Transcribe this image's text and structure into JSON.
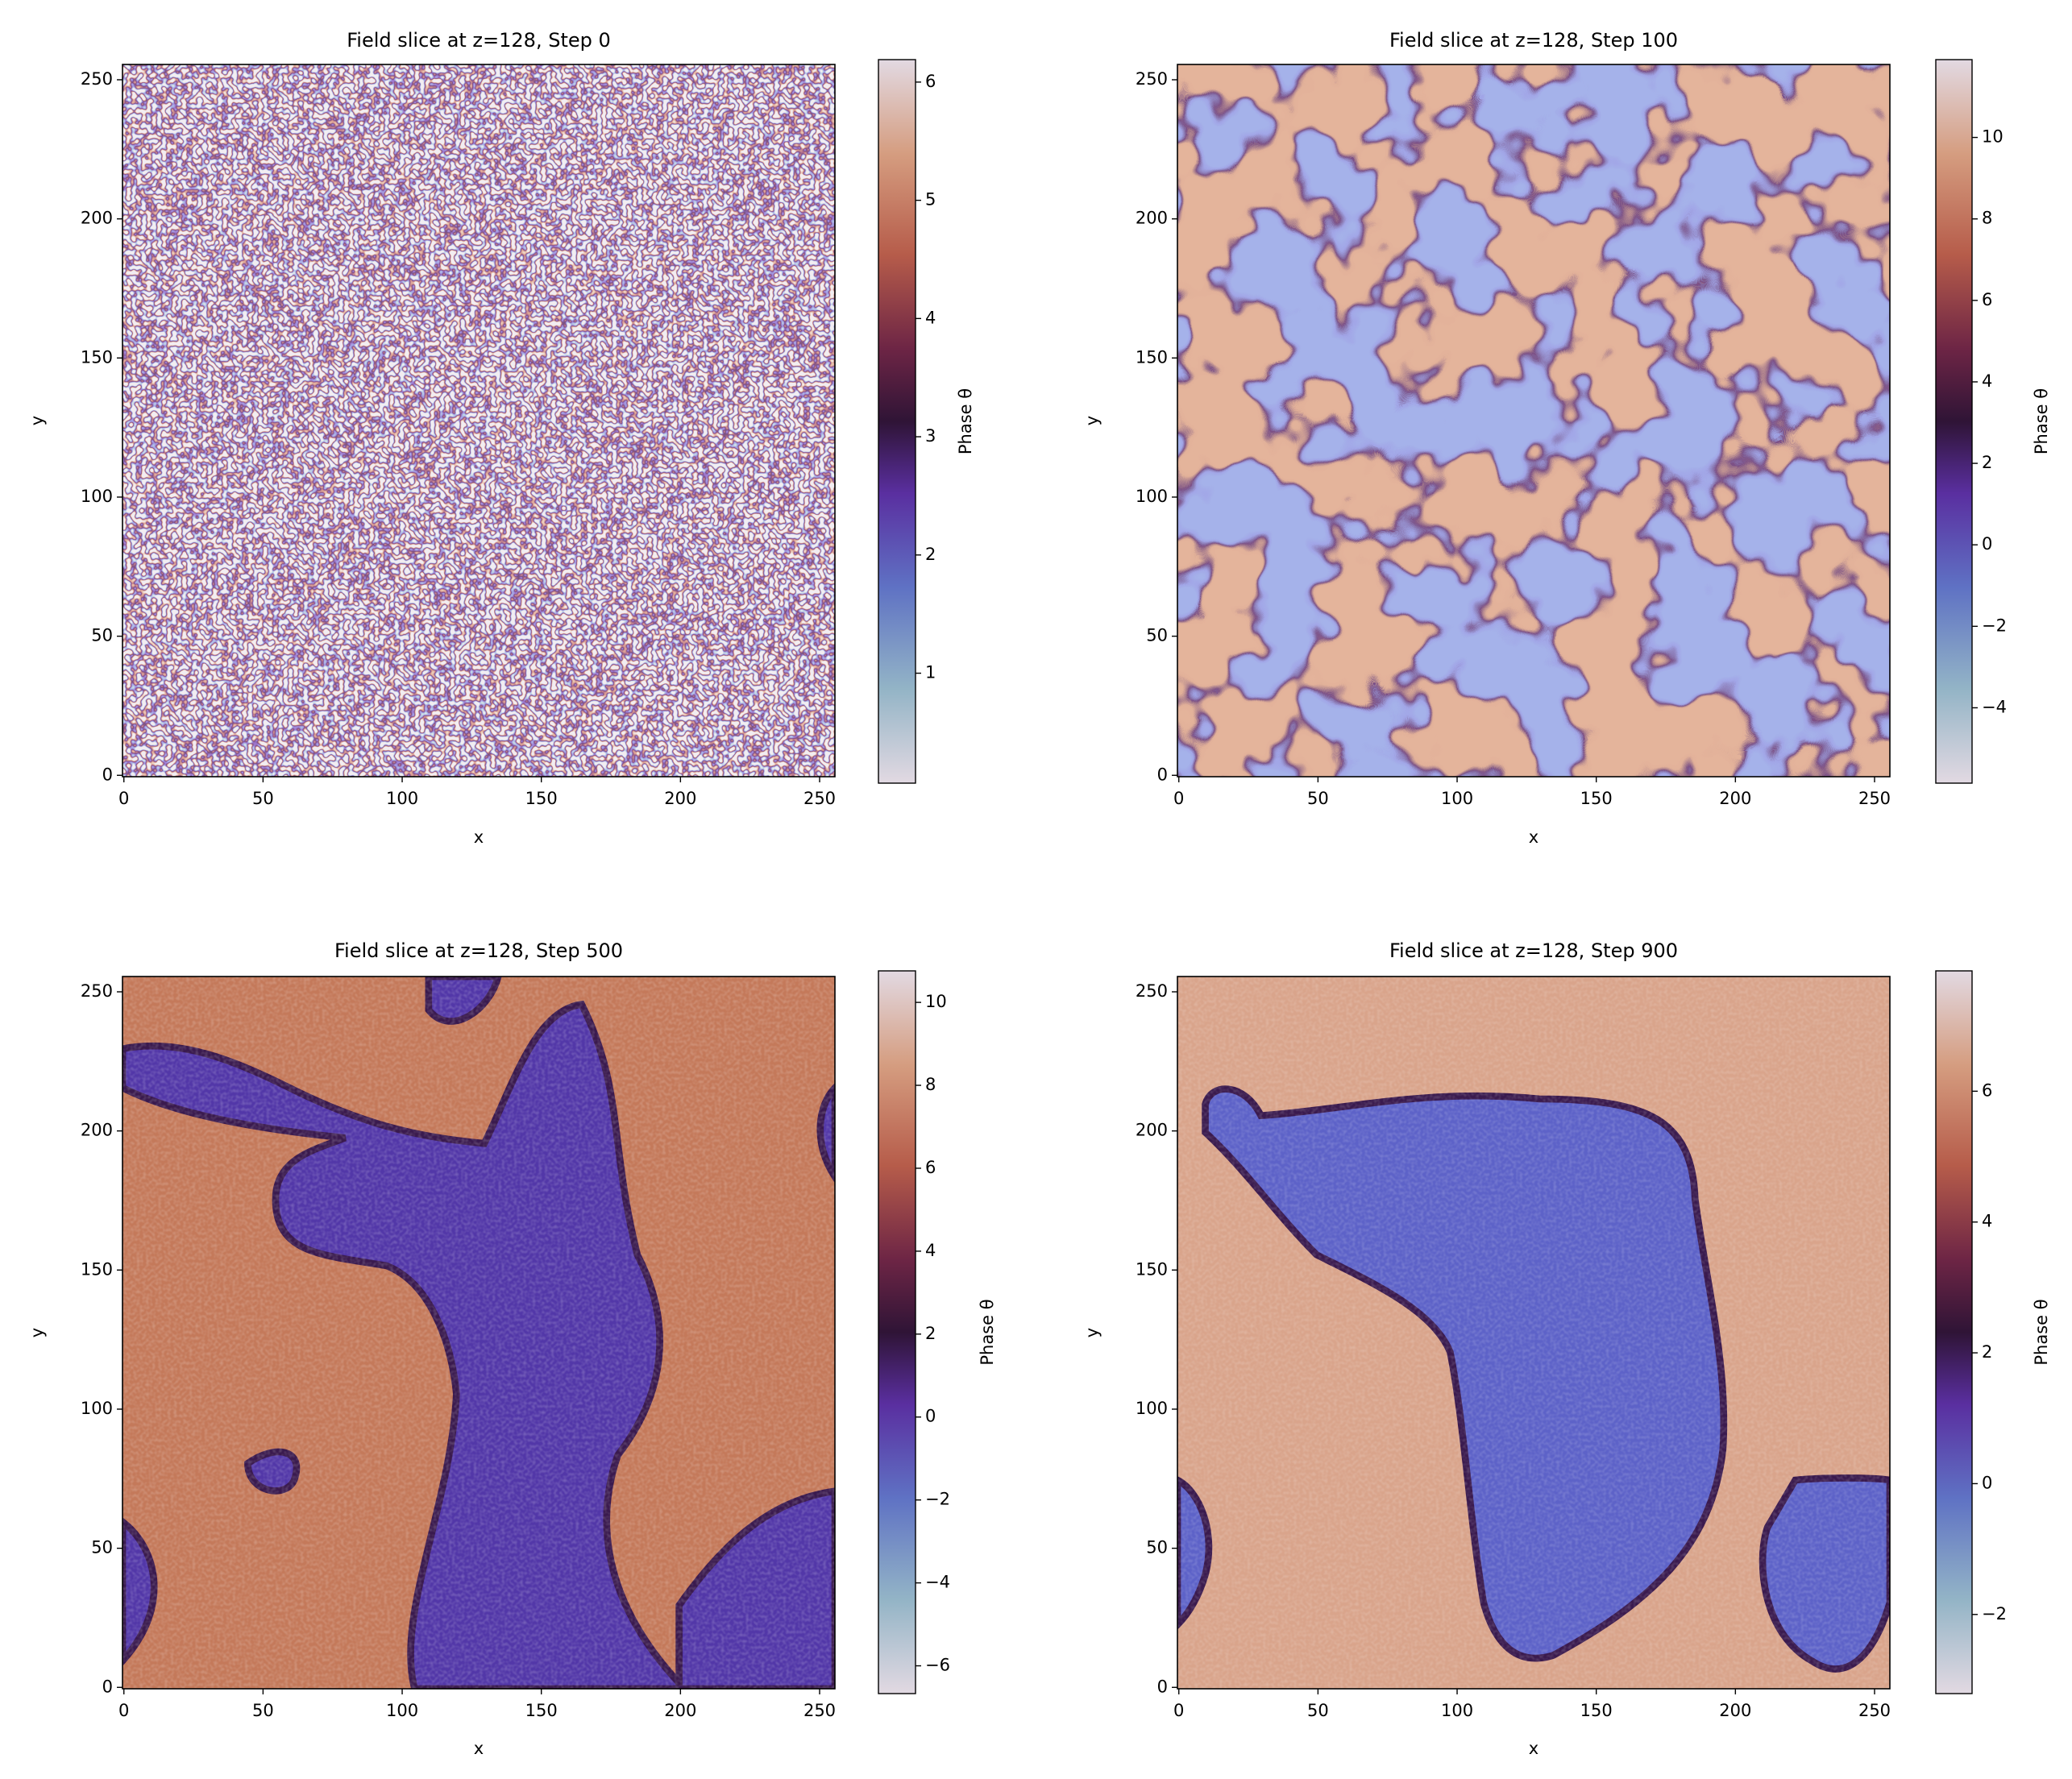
{
  "chart_data": [
    {
      "type": "heatmap",
      "title": "Field slice at z=128, Step 0",
      "xlabel": "x",
      "ylabel": "y",
      "xlim": [
        -0.5,
        255.5
      ],
      "ylim": [
        -0.5,
        255.5
      ],
      "xticks": [
        0,
        50,
        100,
        150,
        200,
        250
      ],
      "yticks": [
        0,
        50,
        100,
        150,
        200,
        250
      ],
      "colorbar": {
        "label": "Phase θ",
        "lim": [
          0.07,
          6.19
        ],
        "ticks": [
          1,
          2,
          3,
          4,
          5,
          6
        ]
      }
    },
    {
      "type": "heatmap",
      "title": "Field slice at z=128, Step 100",
      "xlabel": "x",
      "ylabel": "y",
      "xlim": [
        -0.5,
        255.5
      ],
      "ylim": [
        -0.5,
        255.5
      ],
      "xticks": [
        0,
        50,
        100,
        150,
        200,
        250
      ],
      "yticks": [
        0,
        50,
        100,
        150,
        200,
        250
      ],
      "colorbar": {
        "label": "Phase θ",
        "lim": [
          -5.85,
          11.91
        ],
        "ticks": [
          {
            "value": -4,
            "label": "−4"
          },
          {
            "value": -2,
            "label": "−2"
          },
          0,
          2,
          4,
          6,
          8,
          10
        ]
      }
    },
    {
      "type": "heatmap",
      "title": "Field slice at z=128, Step 500",
      "xlabel": "x",
      "ylabel": "y",
      "xlim": [
        -0.5,
        255.5
      ],
      "ylim": [
        -0.5,
        255.5
      ],
      "xticks": [
        0,
        50,
        100,
        150,
        200,
        250
      ],
      "yticks": [
        0,
        50,
        100,
        150,
        200,
        250
      ],
      "colorbar": {
        "label": "Phase θ",
        "lim": [
          -6.67,
          10.76
        ],
        "ticks": [
          {
            "value": -6,
            "label": "−6"
          },
          {
            "value": -4,
            "label": "−4"
          },
          {
            "value": -2,
            "label": "−2"
          },
          0,
          2,
          4,
          6,
          8,
          10
        ]
      }
    },
    {
      "type": "heatmap",
      "title": "Field slice at z=128, Step 900",
      "xlabel": "x",
      "ylabel": "y",
      "xlim": [
        -0.5,
        255.5
      ],
      "ylim": [
        -0.5,
        255.5
      ],
      "xticks": [
        0,
        50,
        100,
        150,
        200,
        250
      ],
      "yticks": [
        0,
        50,
        100,
        150,
        200,
        250
      ],
      "colorbar": {
        "label": "Phase θ",
        "lim": [
          -3.21,
          7.84
        ],
        "ticks": [
          {
            "value": -2,
            "label": "−2"
          },
          0,
          2,
          4,
          6
        ]
      }
    }
  ]
}
